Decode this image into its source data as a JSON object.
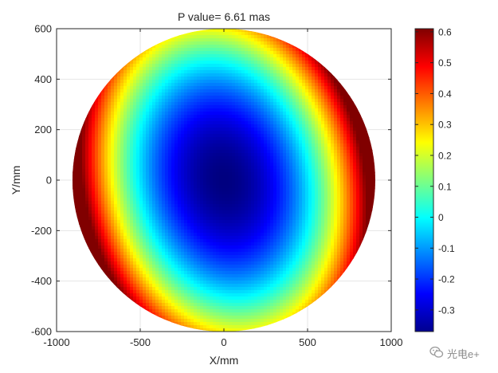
{
  "chart_data": {
    "type": "heatmap",
    "title": "P value= 6.61 mas",
    "xlabel": "X/mm",
    "ylabel": "Y/mm",
    "xlim": [
      -1000,
      1000
    ],
    "ylim": [
      -600,
      600
    ],
    "xticks": [
      -1000,
      -500,
      0,
      500,
      1000
    ],
    "yticks": [
      -600,
      -400,
      -200,
      0,
      200,
      400,
      600
    ],
    "colorbar": {
      "min": -0.37,
      "max": 0.61,
      "ticks": [
        -0.3,
        -0.2,
        -0.1,
        0,
        0.1,
        0.2,
        0.3,
        0.4,
        0.5,
        0.6
      ],
      "colormap": "jet"
    },
    "surface": {
      "shape": "ellipse",
      "semi_axis_x": 900,
      "semi_axis_y": 600,
      "min_value": -0.37,
      "max_value": 0.61,
      "tilt_deg": 25,
      "grid": "on"
    }
  },
  "watermark": {
    "text": "光电e+"
  }
}
